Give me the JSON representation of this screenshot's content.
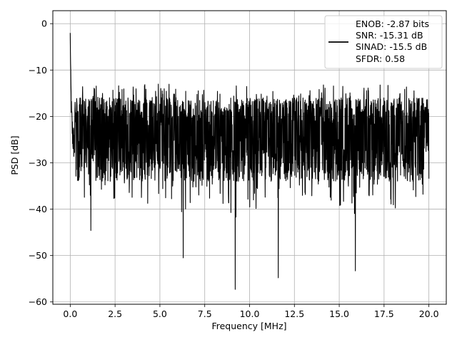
{
  "chart_data": {
    "type": "line",
    "title": "",
    "xlabel": "Frequency [MHz]",
    "ylabel": "PSD [dB]",
    "xlim": [
      -0.97,
      20.97
    ],
    "ylim": [
      -60.5,
      2.8
    ],
    "xticks": [
      0.0,
      2.5,
      5.0,
      7.5,
      10.0,
      12.5,
      15.0,
      17.5,
      20.0
    ],
    "xtick_labels": [
      "0.0",
      "2.5",
      "5.0",
      "7.5",
      "10.0",
      "12.5",
      "15.0",
      "17.5",
      "20.0"
    ],
    "yticks": [
      0,
      -10,
      -20,
      -30,
      -40,
      -50,
      -60
    ],
    "ytick_labels": [
      "0",
      "−10",
      "−20",
      "−30",
      "−40",
      "−50",
      "−60"
    ],
    "grid": true,
    "legend_placement": "top-right",
    "series": [
      {
        "name": "ENOB: -2.87 bits\nSNR: -15.31 dB\nSINAD: -15.5 dB\nSFDR: 0.58",
        "color": "#000000",
        "x_range": [
          0,
          20
        ],
        "peak": {
          "x": 0.0,
          "y": -2.0
        },
        "noise_floor": {
          "typical_top": -16.0,
          "typical_bottom": -34.0,
          "mean": -26.5
        },
        "notable_minima": [
          {
            "x": 1.15,
            "y": -44.6
          },
          {
            "x": 6.3,
            "y": -50.5
          },
          {
            "x": 9.2,
            "y": -57.3
          },
          {
            "x": 11.6,
            "y": -54.8
          },
          {
            "x": 15.9,
            "y": -53.3
          }
        ]
      }
    ],
    "legend_lines": [
      "ENOB: -2.87 bits",
      "SNR: -15.31 dB",
      "SINAD: -15.5 dB",
      "SFDR: 0.58"
    ]
  }
}
